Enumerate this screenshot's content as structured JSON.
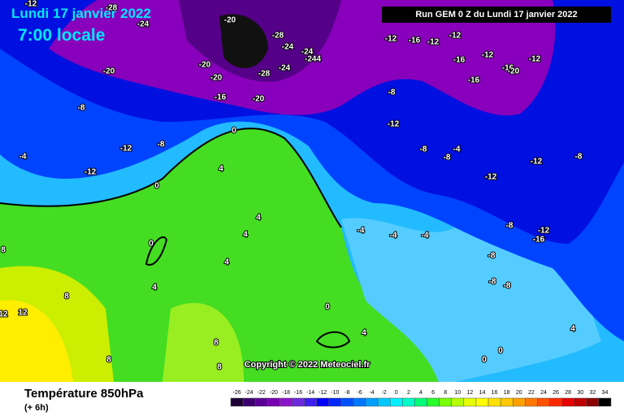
{
  "header": {
    "date": "Lundi 17 janvier 2022",
    "time": "7:00 locale",
    "run": "Run GEM 0 Z du Lundi 17 janvier 2022"
  },
  "copyright": "Copyright © 2022 Meteociel.fr",
  "footer": {
    "title": "Température 850hPa",
    "step": "(+ 6h)"
  },
  "color_scale": {
    "values": [
      -26,
      -24,
      -22,
      -20,
      -18,
      -16,
      -14,
      -12,
      -10,
      -8,
      -6,
      -4,
      -2,
      0,
      2,
      4,
      6,
      8,
      10,
      12,
      14,
      16,
      18,
      20,
      22,
      24,
      26,
      28,
      30,
      32,
      34
    ],
    "colors": [
      "#1e0037",
      "#3c006e",
      "#5a0096",
      "#7800b4",
      "#8c14c8",
      "#6e28dc",
      "#3c1ef0",
      "#0000ff",
      "#0028ff",
      "#0050ff",
      "#0078ff",
      "#00a0ff",
      "#00c8ff",
      "#00f0ff",
      "#00ffc8",
      "#00ff78",
      "#28ff28",
      "#78ff00",
      "#b4ff00",
      "#e6ff00",
      "#ffff00",
      "#ffe100",
      "#ffc800",
      "#ffa000",
      "#ff7800",
      "#ff5000",
      "#ff2800",
      "#e60000",
      "#be0000",
      "#8c0000",
      "#000000"
    ]
  },
  "map_labels": [
    "-12",
    "-28",
    "-24",
    "-20",
    "-28",
    "-24",
    "-24",
    "-244",
    "-20",
    "-28",
    "-20",
    "-24",
    "-16",
    "-20",
    "-20",
    "-12",
    "-16",
    "-12",
    "-12",
    "-12",
    "-16",
    "-16",
    "-16",
    "-20",
    "-12",
    "-8",
    "-12",
    "-8",
    "-4",
    "-8",
    "-12",
    "-12",
    "-8",
    "-8",
    "-8",
    "-12",
    "-12",
    "-4",
    "-8",
    "-12",
    "-16",
    "-8",
    "-8",
    "-8",
    "-4",
    "-4",
    "-4",
    "0",
    "4",
    "0",
    "4",
    "0",
    "4",
    "4",
    "4",
    "0",
    "4",
    "4",
    "0",
    "0",
    "8",
    "8",
    "12",
    "12",
    "8",
    "8",
    "8"
  ]
}
